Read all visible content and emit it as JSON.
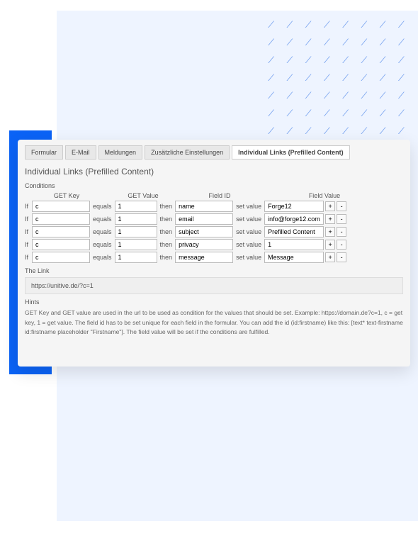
{
  "colors": {
    "background_light": "#eef4ff",
    "accent_blue": "#0b63f6",
    "hatch_stroke": "#7ba5f0",
    "panel_bg": "#f5f5f5",
    "tab_bg": "#e8e8e8",
    "tab_active_bg": "#ffffff",
    "text": "#555555"
  },
  "tabs": [
    {
      "label": "Formular"
    },
    {
      "label": "E-Mail"
    },
    {
      "label": "Meldungen"
    },
    {
      "label": "Zusätzliche Einstellungen"
    },
    {
      "label": "Individual Links (Prefilled Content)"
    }
  ],
  "section_title": "Individual Links (Prefilled Content)",
  "conditions_label": "Conditions",
  "headers": {
    "get_key": "GET Key",
    "get_value": "GET Value",
    "field_id": "Field ID",
    "field_value": "Field Value"
  },
  "row_labels": {
    "if": "If",
    "equals": "equals",
    "then": "then",
    "set_value": "set value"
  },
  "rows": [
    {
      "key": "c",
      "val": "1",
      "field_id": "name",
      "field_value": "Forge12"
    },
    {
      "key": "c",
      "val": "1",
      "field_id": "email",
      "field_value": "info@forge12.com"
    },
    {
      "key": "c",
      "val": "1",
      "field_id": "subject",
      "field_value": "Prefilled Content"
    },
    {
      "key": "c",
      "val": "1",
      "field_id": "privacy",
      "field_value": "1"
    },
    {
      "key": "c",
      "val": "1",
      "field_id": "message",
      "field_value": "Message"
    }
  ],
  "buttons": {
    "add": "+",
    "remove": "-"
  },
  "the_link_label": "The Link",
  "the_link_value": "https://unitive.de/?c=1",
  "hints_label": "Hints",
  "hints_text": "GET Key and GET value are used in the url to be used as condition for the values that should be set. Example: https://domain.de?c=1, c = get key, 1 = get value. The field id has to be set unique for each field in the formular. You can add the id (id:firstname) like this: [text* text-firstname id:firstname placeholder \"Firstname\"]. The field value will be set if the conditions are fulfilled."
}
